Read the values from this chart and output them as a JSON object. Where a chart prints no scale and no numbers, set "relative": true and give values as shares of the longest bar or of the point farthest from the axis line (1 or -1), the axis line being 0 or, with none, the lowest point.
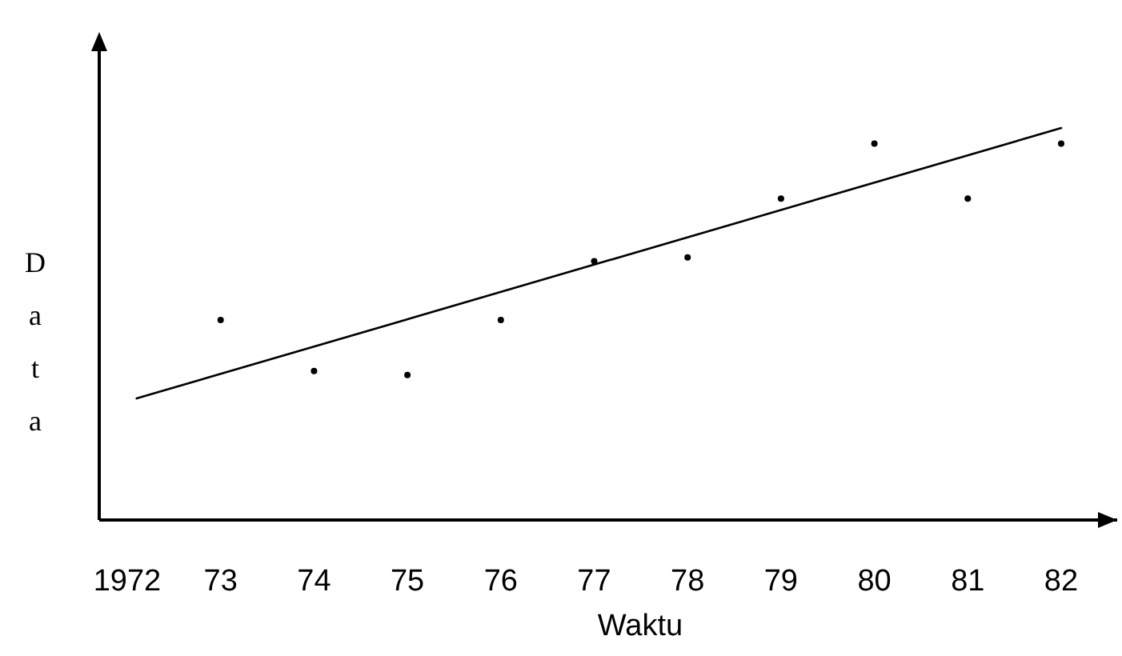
{
  "chart_data": {
    "type": "scatter",
    "xlabel": "Waktu",
    "ylabel": "Data",
    "relative": true,
    "x": [
      1973,
      1974,
      1975,
      1976,
      1977,
      1978,
      1979,
      1980,
      1981,
      1982
    ],
    "xlim": [
      1971.7,
      1982.6
    ],
    "xticks": [
      1972,
      {
        "value": 1973,
        "label": "73"
      },
      {
        "value": 1974,
        "label": "74"
      },
      {
        "value": 1975,
        "label": "75"
      },
      {
        "value": 1976,
        "label": "76"
      },
      {
        "value": 1977,
        "label": "77"
      },
      {
        "value": 1978,
        "label": "78"
      },
      {
        "value": 1979,
        "label": "79"
      },
      {
        "value": 1980,
        "label": "80"
      },
      {
        "value": 1981,
        "label": "81"
      },
      {
        "value": 1982,
        "label": "82"
      }
    ],
    "marker": "circle",
    "legend": false,
    "grid": false,
    "series": [
      {
        "type": "scatter",
        "color": "#000000",
        "values": [
          0.51,
          0.38,
          0.37,
          0.51,
          0.66,
          0.67,
          0.82,
          0.96,
          0.82,
          0.96
        ]
      },
      {
        "type": "line",
        "marker": "none",
        "color": "#000000",
        "x": [
          1972.1,
          1982
        ],
        "values": [
          0.31,
          1
        ]
      }
    ]
  }
}
